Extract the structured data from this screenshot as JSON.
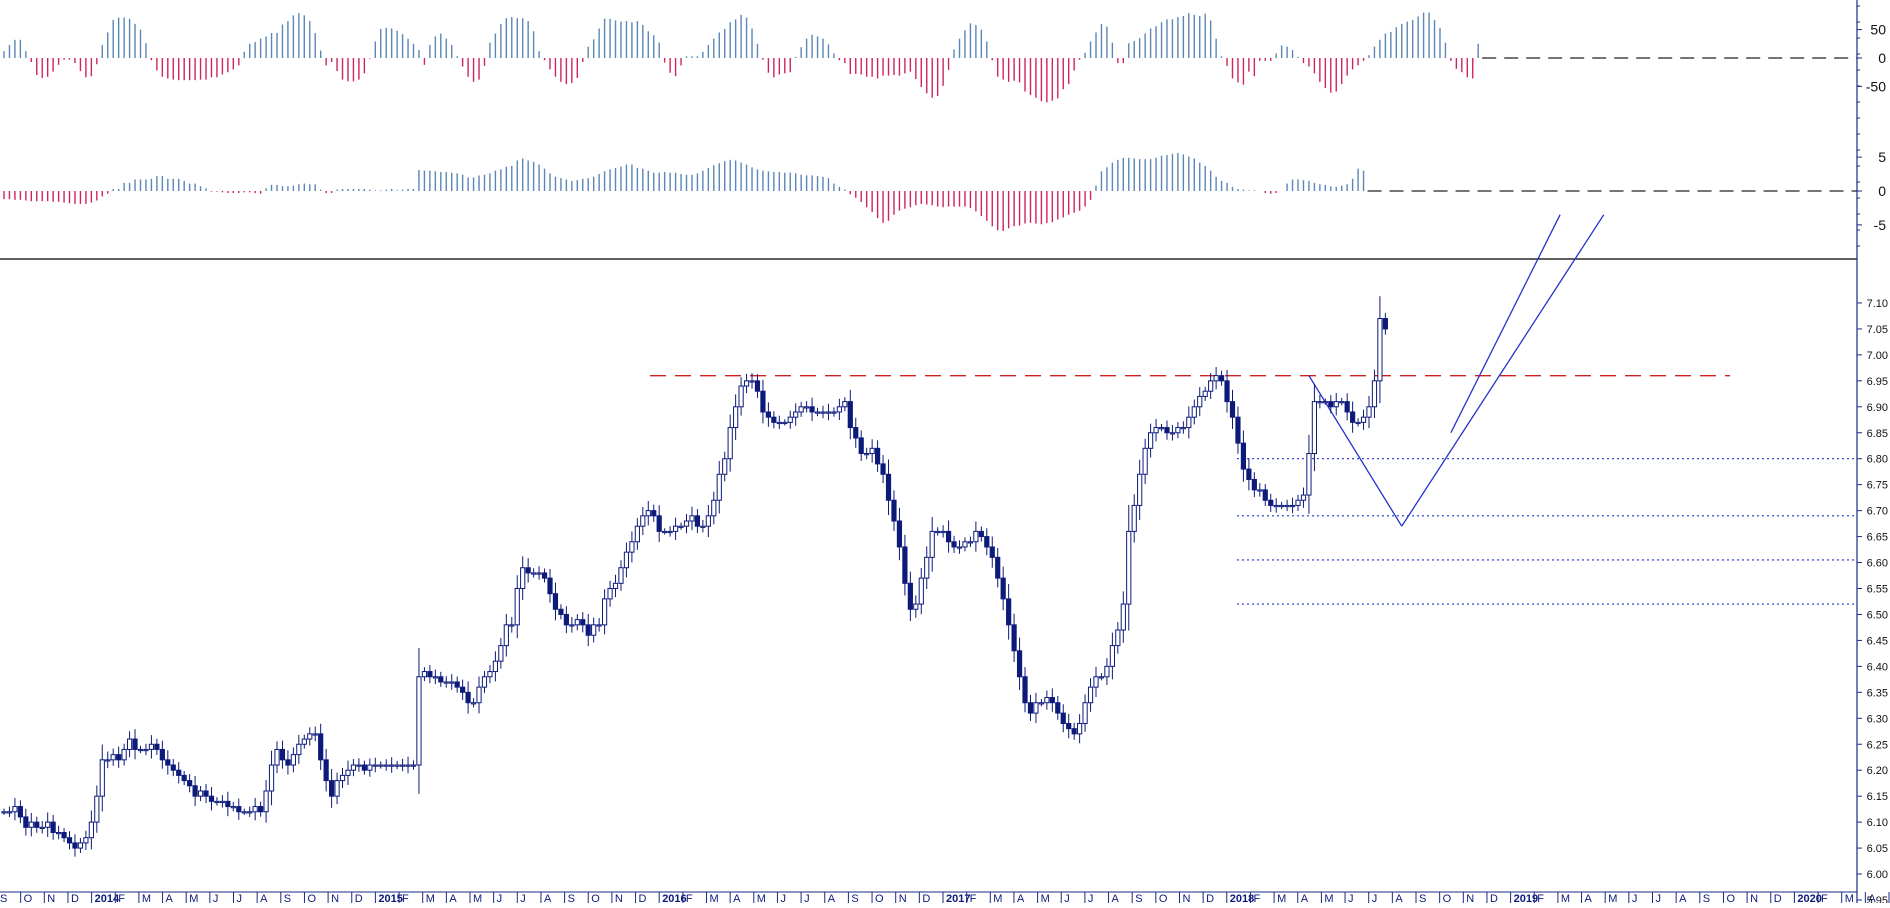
{
  "colors": {
    "up": "#5b86b6",
    "down": "#d0245a",
    "candle": "#0d1a7a",
    "resistance": "#d02020",
    "support": "#2233cc",
    "trendline": "#2233cc",
    "axis": "#1a2a80",
    "grid_dash": "#222222"
  },
  "panels": [
    {
      "id": "osc1",
      "ticks": [
        {
          "v": 50,
          "label": "50"
        },
        {
          "v": 0,
          "label": "0"
        },
        {
          "v": -50,
          "label": "-50"
        }
      ],
      "ylim": [
        -80,
        95
      ]
    },
    {
      "id": "osc2",
      "ticks": [
        {
          "v": 5,
          "label": "5"
        },
        {
          "v": 0,
          "label": "0"
        },
        {
          "v": -5,
          "label": "-5"
        }
      ],
      "ylim": [
        -9,
        9
      ]
    }
  ],
  "chart_data": {
    "type": "candlestick",
    "ylim": [
      5.95,
      7.15
    ],
    "y_ticks": [
      "5.95",
      "6.00",
      "6.05",
      "6.10",
      "6.15",
      "6.20",
      "6.25",
      "6.30",
      "6.35",
      "6.40",
      "6.45",
      "6.50",
      "6.55",
      "6.60",
      "6.65",
      "6.70",
      "6.75",
      "6.80",
      "6.85",
      "6.90",
      "6.95",
      "7.00",
      "7.05",
      "7.10"
    ],
    "x_months": [
      "S",
      "O",
      "N",
      "D",
      "2014",
      "F",
      "M",
      "A",
      "M",
      "J",
      "J",
      "A",
      "S",
      "O",
      "N",
      "D",
      "2015",
      "F",
      "M",
      "A",
      "M",
      "J",
      "J",
      "A",
      "S",
      "O",
      "N",
      "D",
      "2016",
      "F",
      "M",
      "A",
      "M",
      "J",
      "J",
      "A",
      "S",
      "O",
      "N",
      "D",
      "2017",
      "F",
      "M",
      "A",
      "M",
      "J",
      "J",
      "A",
      "S",
      "O",
      "N",
      "D",
      "2018",
      "F",
      "M",
      "A",
      "M",
      "J",
      "J",
      "A",
      "S",
      "O",
      "N",
      "D",
      "2019",
      "F",
      "M",
      "A",
      "M",
      "J",
      "J",
      "A",
      "S",
      "O",
      "N",
      "D",
      "2020",
      "F",
      "M",
      "A",
      "M",
      "J",
      "J"
    ],
    "closes": [
      6.12,
      6.12,
      6.13,
      6.11,
      6.09,
      6.1,
      6.09,
      6.09,
      6.1,
      6.08,
      6.08,
      6.07,
      6.06,
      6.05,
      6.06,
      6.07,
      6.1,
      6.15,
      6.22,
      6.22,
      6.23,
      6.22,
      6.24,
      6.26,
      6.24,
      6.24,
      6.24,
      6.25,
      6.24,
      6.22,
      6.21,
      6.2,
      6.19,
      6.18,
      6.17,
      6.15,
      6.16,
      6.15,
      6.14,
      6.14,
      6.14,
      6.13,
      6.13,
      6.12,
      6.12,
      6.12,
      6.13,
      6.12,
      6.16,
      6.21,
      6.24,
      6.22,
      6.21,
      6.23,
      6.25,
      6.26,
      6.27,
      6.27,
      6.22,
      6.18,
      6.15,
      6.18,
      6.19,
      6.2,
      6.21,
      6.21,
      6.2,
      6.21,
      6.21,
      6.21,
      6.21,
      6.21,
      6.21,
      6.21,
      6.21,
      6.21,
      6.38,
      6.39,
      6.38,
      6.38,
      6.37,
      6.37,
      6.37,
      6.36,
      6.35,
      6.33,
      6.33,
      6.36,
      6.38,
      6.39,
      6.41,
      6.44,
      6.48,
      6.48,
      6.55,
      6.59,
      6.58,
      6.58,
      6.58,
      6.57,
      6.54,
      6.51,
      6.5,
      6.48,
      6.48,
      6.49,
      6.48,
      6.46,
      6.48,
      6.48,
      6.53,
      6.55,
      6.56,
      6.59,
      6.62,
      6.64,
      6.67,
      6.69,
      6.7,
      6.69,
      6.66,
      6.66,
      6.66,
      6.67,
      6.67,
      6.68,
      6.69,
      6.67,
      6.67,
      6.69,
      6.72,
      6.77,
      6.8,
      6.86,
      6.9,
      6.94,
      6.95,
      6.95,
      6.93,
      6.89,
      6.88,
      6.87,
      6.87,
      6.87,
      6.88,
      6.89,
      6.9,
      6.9,
      6.89,
      6.89,
      6.89,
      6.89,
      6.89,
      6.9,
      6.91,
      6.86,
      6.84,
      6.81,
      6.81,
      6.82,
      6.79,
      6.77,
      6.72,
      6.68,
      6.63,
      6.56,
      6.51,
      6.52,
      6.57,
      6.61,
      6.66,
      6.66,
      6.66,
      6.64,
      6.63,
      6.63,
      6.64,
      6.64,
      6.66,
      6.65,
      6.63,
      6.61,
      6.57,
      6.53,
      6.48,
      6.43,
      6.38,
      6.33,
      6.31,
      6.33,
      6.33,
      6.34,
      6.33,
      6.31,
      6.29,
      6.28,
      6.27,
      6.29,
      6.33,
      6.36,
      6.38,
      6.38,
      6.4,
      6.44,
      6.47,
      6.52,
      6.66,
      6.71,
      6.77,
      6.82,
      6.85,
      6.86,
      6.86,
      6.85,
      6.85,
      6.86,
      6.86,
      6.88,
      6.9,
      6.92,
      6.93,
      6.95,
      6.96,
      6.95,
      6.91,
      6.88,
      6.83,
      6.78,
      6.76,
      6.74,
      6.74,
      6.72,
      6.71,
      6.71,
      6.71,
      6.71,
      6.71,
      6.72,
      6.73,
      6.81,
      6.91,
      6.91,
      6.91,
      6.9,
      6.91,
      6.91,
      6.89,
      6.87,
      6.87,
      6.88,
      6.9,
      6.95,
      7.07,
      7.05
    ],
    "osc1_values": [
      12,
      23,
      32,
      32,
      12,
      -7,
      -30,
      -35,
      -33,
      -24,
      -12,
      -3,
      -3,
      -9,
      -23,
      -34,
      -32,
      -11,
      23,
      45,
      67,
      71,
      71,
      69,
      60,
      50,
      26,
      -4,
      -22,
      -33,
      -36,
      -38,
      -39,
      -39,
      -39,
      -39,
      -38,
      -38,
      -34,
      -34,
      -29,
      -25,
      -20,
      -13,
      11,
      25,
      28,
      34,
      38,
      44,
      44,
      59,
      65,
      75,
      79,
      75,
      65,
      44,
      13,
      -13,
      -7,
      -23,
      -38,
      -41,
      -41,
      -38,
      -27,
      -1,
      29,
      51,
      53,
      52,
      48,
      42,
      34,
      25,
      14,
      -12,
      23,
      38,
      43,
      34,
      23,
      3,
      -15,
      -33,
      -42,
      -38,
      -14,
      27,
      43,
      60,
      70,
      72,
      70,
      70,
      65,
      47,
      12,
      -4,
      -20,
      -33,
      -42,
      -46,
      -44,
      -35,
      -7,
      20,
      33,
      52,
      69,
      69,
      66,
      64,
      65,
      63,
      65,
      58,
      47,
      40,
      27,
      -8,
      -26,
      -32,
      -13,
      3,
      3,
      3,
      11,
      23,
      34,
      45,
      51,
      63,
      68,
      76,
      71,
      52,
      25,
      -3,
      -26,
      -34,
      -29,
      -27,
      -25,
      2,
      19,
      34,
      41,
      38,
      34,
      24,
      8,
      -4,
      -9,
      -28,
      -28,
      -29,
      -33,
      -33,
      -36,
      -31,
      -31,
      -30,
      -31,
      -27,
      -24,
      -37,
      -51,
      -62,
      -70,
      -67,
      -49,
      -21,
      15,
      34,
      49,
      61,
      58,
      50,
      29,
      -4,
      -33,
      -38,
      -42,
      -40,
      -43,
      -59,
      -65,
      -70,
      -76,
      -78,
      -75,
      -71,
      -55,
      -46,
      -22,
      -3,
      9,
      29,
      45,
      60,
      55,
      27,
      -9,
      -9,
      26,
      30,
      35,
      43,
      52,
      56,
      63,
      68,
      68,
      72,
      74,
      79,
      76,
      74,
      78,
      66,
      34,
      3,
      -14,
      -36,
      -43,
      -47,
      -24,
      -32,
      -5,
      -5,
      -5,
      8,
      22,
      20,
      14,
      2,
      -9,
      -15,
      -27,
      -42,
      -53,
      -61,
      -59,
      -46,
      -31,
      -20,
      -13,
      -5,
      5,
      20,
      32,
      43,
      46,
      54,
      60,
      64,
      67,
      73,
      80,
      80,
      67,
      53,
      27,
      -5,
      -19,
      -25,
      -34,
      -36,
      25
    ],
    "osc2_values": [
      -1.2,
      -1.2,
      -1.3,
      -1.3,
      -1.4,
      -1.5,
      -1.5,
      -1.5,
      -1.5,
      -1.6,
      -1.6,
      -1.7,
      -1.8,
      -1.9,
      -1.9,
      -1.9,
      -1.7,
      -1.4,
      -0.8,
      -0.4,
      0.3,
      0.3,
      1.2,
      1.2,
      1.7,
      1.7,
      1.7,
      1.8,
      2.2,
      2.2,
      1.8,
      1.8,
      1.8,
      1.5,
      1.1,
      1.1,
      0.7,
      0.4,
      -0.1,
      -0.1,
      -0.2,
      -0.3,
      -0.3,
      -0.3,
      -0.2,
      -0.2,
      -0.3,
      -0.4,
      0.4,
      0.9,
      0.9,
      0.7,
      0.7,
      0.8,
      1,
      1.1,
      1,
      1,
      0.2,
      -0.3,
      -0.3,
      0.2,
      0.3,
      0.3,
      0.3,
      0.3,
      0.3,
      0.2,
      0.1,
      0.1,
      0.2,
      0.3,
      0.1,
      0.2,
      0.3,
      0.3,
      3.1,
      3,
      3,
      2.9,
      2.8,
      2.8,
      2.7,
      2.6,
      2.4,
      2,
      2,
      2.3,
      2.4,
      2.6,
      3,
      3.2,
      3.6,
      3.7,
      4.5,
      4.8,
      4.5,
      4.3,
      3.9,
      3.3,
      2.6,
      2.1,
      1.9,
      1.7,
      1.5,
      1.6,
      1.8,
      1.9,
      2.1,
      2.5,
      2.9,
      3.2,
      3.4,
      3.6,
      3.9,
      3.9,
      3.4,
      3.3,
      3,
      2.7,
      2.7,
      2.8,
      2.7,
      2.7,
      2.5,
      2.4,
      2.4,
      2.6,
      3,
      3.4,
      3.8,
      4.1,
      4.4,
      4.6,
      4.5,
      4.2,
      3.9,
      3.5,
      3.2,
      3,
      2.9,
      2.8,
      2.8,
      2.7,
      2.7,
      2.6,
      2.4,
      2.3,
      2.3,
      2.2,
      2.1,
      1.9,
      1.1,
      0.6,
      0.2,
      -0.5,
      -1,
      -1.6,
      -2.4,
      -3.1,
      -4,
      -4.7,
      -4.4,
      -3.5,
      -2.9,
      -2.6,
      -2.4,
      -2.1,
      -1.9,
      -2,
      -2.1,
      -2.3,
      -2.4,
      -2.3,
      -2.3,
      -2.3,
      -2.3,
      -2.5,
      -3,
      -3.7,
      -4.4,
      -5.2,
      -5.8,
      -5.9,
      -5.5,
      -5.2,
      -5.1,
      -4.8,
      -4.7,
      -4.8,
      -4.9,
      -4.7,
      -4.6,
      -4.2,
      -3.9,
      -3.5,
      -3.2,
      -2.9,
      -2.3,
      -1.3,
      0.8,
      2.9,
      3.5,
      4.2,
      4.6,
      4.9,
      4.9,
      4.8,
      4.7,
      4.7,
      4.7,
      4.9,
      5.2,
      5.3,
      5.5,
      5.6,
      5.4,
      5.1,
      4.8,
      4.2,
      3.7,
      3,
      2.1,
      1.5,
      1.2,
      0.6,
      0.3,
      0.2,
      0.1,
      0.1,
      0,
      -0.3,
      -0.4,
      -0.3,
      0,
      1.1,
      1.7,
      1.7,
      1.6,
      1.5,
      1.2,
      1,
      0.9,
      0.7,
      0.6,
      0.8,
      1,
      1.8,
      3.3,
      3
    ],
    "resistance_level": 6.96,
    "support_levels": [
      6.8,
      6.69,
      6.605,
      6.52
    ],
    "trendlines": [
      {
        "from": {
          "i": 239,
          "v": 6.96
        },
        "to": {
          "i": 256,
          "v": 6.67
        }
      },
      {
        "from": {
          "i": 256,
          "v": 6.67
        },
        "to": {
          "i": 293,
          "v": 7.27
        }
      },
      {
        "from": {
          "i": 265,
          "v": 6.85
        },
        "to": {
          "i": 285,
          "v": 7.27
        }
      }
    ]
  }
}
